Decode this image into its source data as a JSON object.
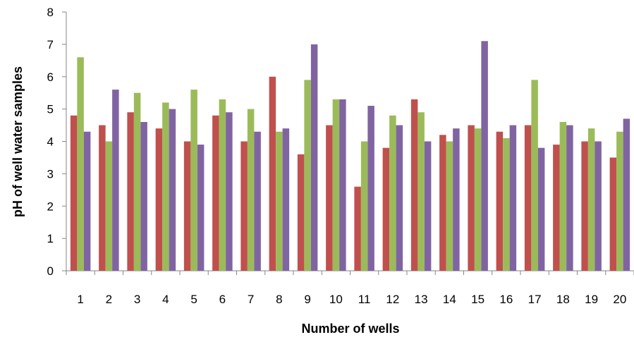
{
  "chart_data": {
    "type": "bar",
    "title": "",
    "xlabel": "Number of wells",
    "ylabel": "pH of well water samples",
    "ylim": [
      0,
      8
    ],
    "yticks": [
      "0",
      "1",
      "2",
      "3",
      "4",
      "5",
      "6",
      "7",
      "8"
    ],
    "grid": false,
    "legend": "none",
    "categories": [
      "1",
      "2",
      "3",
      "4",
      "5",
      "6",
      "7",
      "8",
      "9",
      "10",
      "11",
      "12",
      "13",
      "14",
      "15",
      "16",
      "17",
      "18",
      "19",
      "20"
    ],
    "series": [
      {
        "color": "#c0504d",
        "values": [
          4.8,
          4.5,
          4.9,
          4.4,
          4.0,
          4.8,
          4.0,
          6.0,
          3.6,
          4.5,
          2.6,
          3.8,
          5.3,
          4.2,
          4.5,
          4.3,
          4.5,
          3.9,
          4.0,
          3.5
        ]
      },
      {
        "color": "#9bbb59",
        "values": [
          6.6,
          4.0,
          5.5,
          5.2,
          5.6,
          5.3,
          5.0,
          4.3,
          5.9,
          5.3,
          4.0,
          4.8,
          4.9,
          4.0,
          4.4,
          4.1,
          5.9,
          4.6,
          4.4,
          4.3
        ]
      },
      {
        "color": "#8064a2",
        "values": [
          4.3,
          5.6,
          4.6,
          5.0,
          3.9,
          4.9,
          4.3,
          4.4,
          7.0,
          5.3,
          5.1,
          4.5,
          4.0,
          4.4,
          7.1,
          4.5,
          3.8,
          4.5,
          4.0,
          4.7
        ]
      }
    ]
  }
}
